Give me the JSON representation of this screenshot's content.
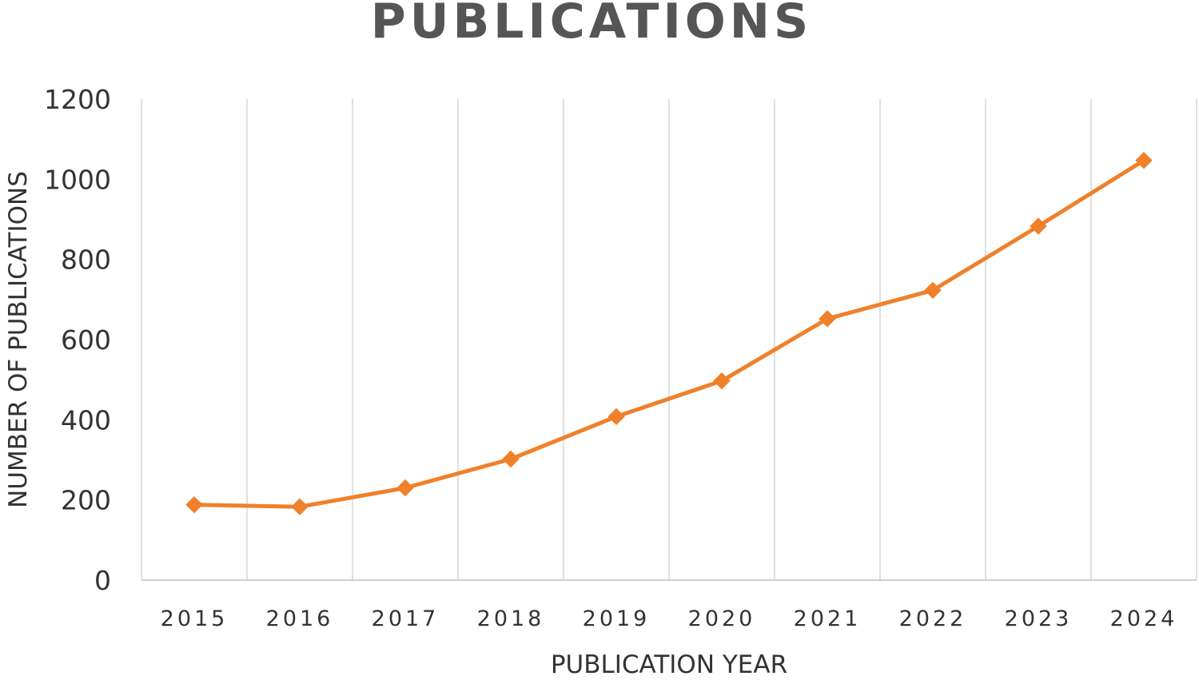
{
  "chart_data": {
    "type": "line",
    "title": "PUBLICATIONS",
    "xlabel": "PUBLICATION YEAR",
    "ylabel": "NUMBER OF PUBLICATIONS",
    "categories": [
      "2015",
      "2016",
      "2017",
      "2018",
      "2019",
      "2020",
      "2021",
      "2022",
      "2023",
      "2024"
    ],
    "series": [
      {
        "values": [
          188,
          183,
          230,
          302,
          408,
          497,
          652,
          723,
          883,
          1047
        ],
        "color": "#F0802A",
        "marker": "diamond"
      }
    ],
    "ylim": [
      0,
      1200
    ],
    "yticks": [
      0,
      200,
      400,
      600,
      800,
      1000,
      1200
    ],
    "grid": "vertical",
    "legend": "none"
  }
}
